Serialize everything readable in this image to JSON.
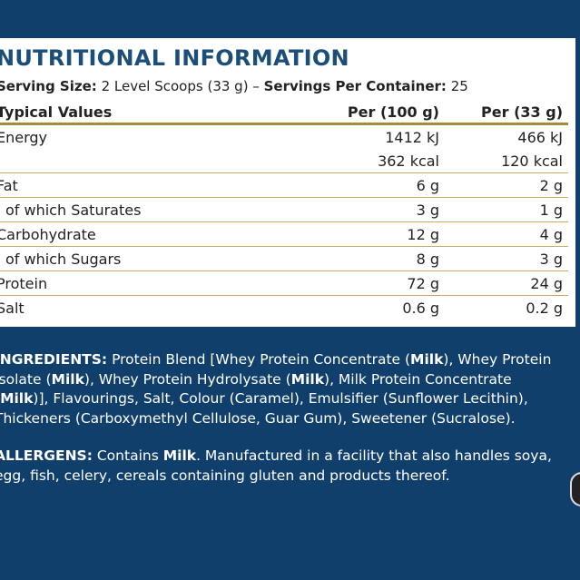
{
  "title": "NUTRITIONAL INFORMATION",
  "serving": {
    "size_label": "Serving Size:",
    "size_value": "2 Level Scoops (33 g)",
    "separator": "–",
    "servings_label": "Servings Per Container:",
    "servings_value": "25"
  },
  "table": {
    "headers": [
      "Typical Values",
      "Per (100 g)",
      "Per (33 g)"
    ],
    "rows": [
      [
        "Energy",
        "1412 kJ",
        "466 kJ"
      ],
      [
        "",
        "362 kcal",
        "120 kcal"
      ],
      [
        "Fat",
        "6 g",
        "2 g"
      ],
      [
        "of which Saturates",
        "3 g",
        "1 g"
      ],
      [
        "Carbohydrate",
        "12 g",
        "4 g"
      ],
      [
        "of which Sugars",
        "8 g",
        "3 g"
      ],
      [
        "Protein",
        "72 g",
        "24 g"
      ],
      [
        "Salt",
        "0.6 g",
        "0.2 g"
      ]
    ]
  },
  "ingredients": {
    "label": "INGREDIENTS:",
    "lines": [
      [
        "Protein Blend [Whey Protein Concentrate (",
        "Milk",
        "), Whey Protein"
      ],
      [
        "Isolate (",
        "Milk",
        "), Whey Protein Hydrolysate (",
        "Milk",
        "), Milk Protein Concentrate"
      ],
      [
        "(",
        "Milk",
        ")], Flavourings, Salt, Colour (Caramel), Emulsifier (Sunflower Lecithin),"
      ],
      [
        "Thickeners (Carboxymethyl Cellulose, Guar Gum), Sweetener (Sucralose)."
      ]
    ]
  },
  "allergens": {
    "label": "ALLERGENS:",
    "lines": [
      [
        "Contains ",
        "Milk",
        ". Manufactured in a facility that also handles soya,"
      ],
      [
        "egg, fish, celery, cereals containing gluten and products thereof."
      ]
    ]
  },
  "colors": {
    "background": "#113f6c",
    "title": "#1b4f7a",
    "rule": "#a9893a"
  }
}
